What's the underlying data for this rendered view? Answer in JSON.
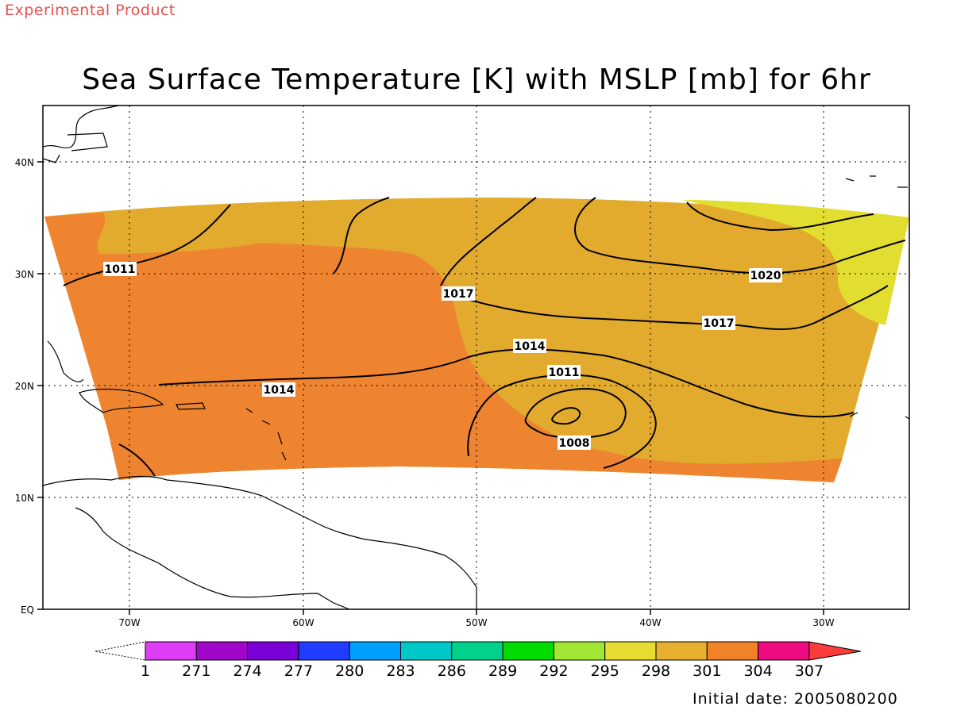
{
  "header": {
    "experimental_label": "Experimental Product",
    "title": "Sea Surface Temperature [K] with MSLP [mb] for 6hr"
  },
  "map": {
    "lon_labels": [
      "70W",
      "60W",
      "50W",
      "40W",
      "30W"
    ],
    "lat_labels": [
      "40N",
      "30N",
      "20N",
      "10N",
      "EQ"
    ],
    "isobar_labels": [
      "1011",
      "1017",
      "1020",
      "1017",
      "1014",
      "1011",
      "1008",
      "1014"
    ],
    "fill_colors": {
      "sst_301": "#e2ab2e",
      "sst_304": "#ee8430",
      "sst_298": "#e2de31"
    }
  },
  "colorbar": {
    "labels": [
      "1",
      "271",
      "274",
      "277",
      "280",
      "283",
      "286",
      "289",
      "292",
      "295",
      "298",
      "301",
      "304",
      "307"
    ],
    "colors": [
      "#df3cf6",
      "#9f06c8",
      "#7a00d8",
      "#1f3cff",
      "#00a0ff",
      "#00c8c8",
      "#00d28c",
      "#00dc00",
      "#a0e632",
      "#e6dc32",
      "#e6af2d",
      "#f08228",
      "#f00a82",
      "#fa3c3c"
    ]
  },
  "footer": {
    "initial_date": "Initial date: 2005080200"
  }
}
